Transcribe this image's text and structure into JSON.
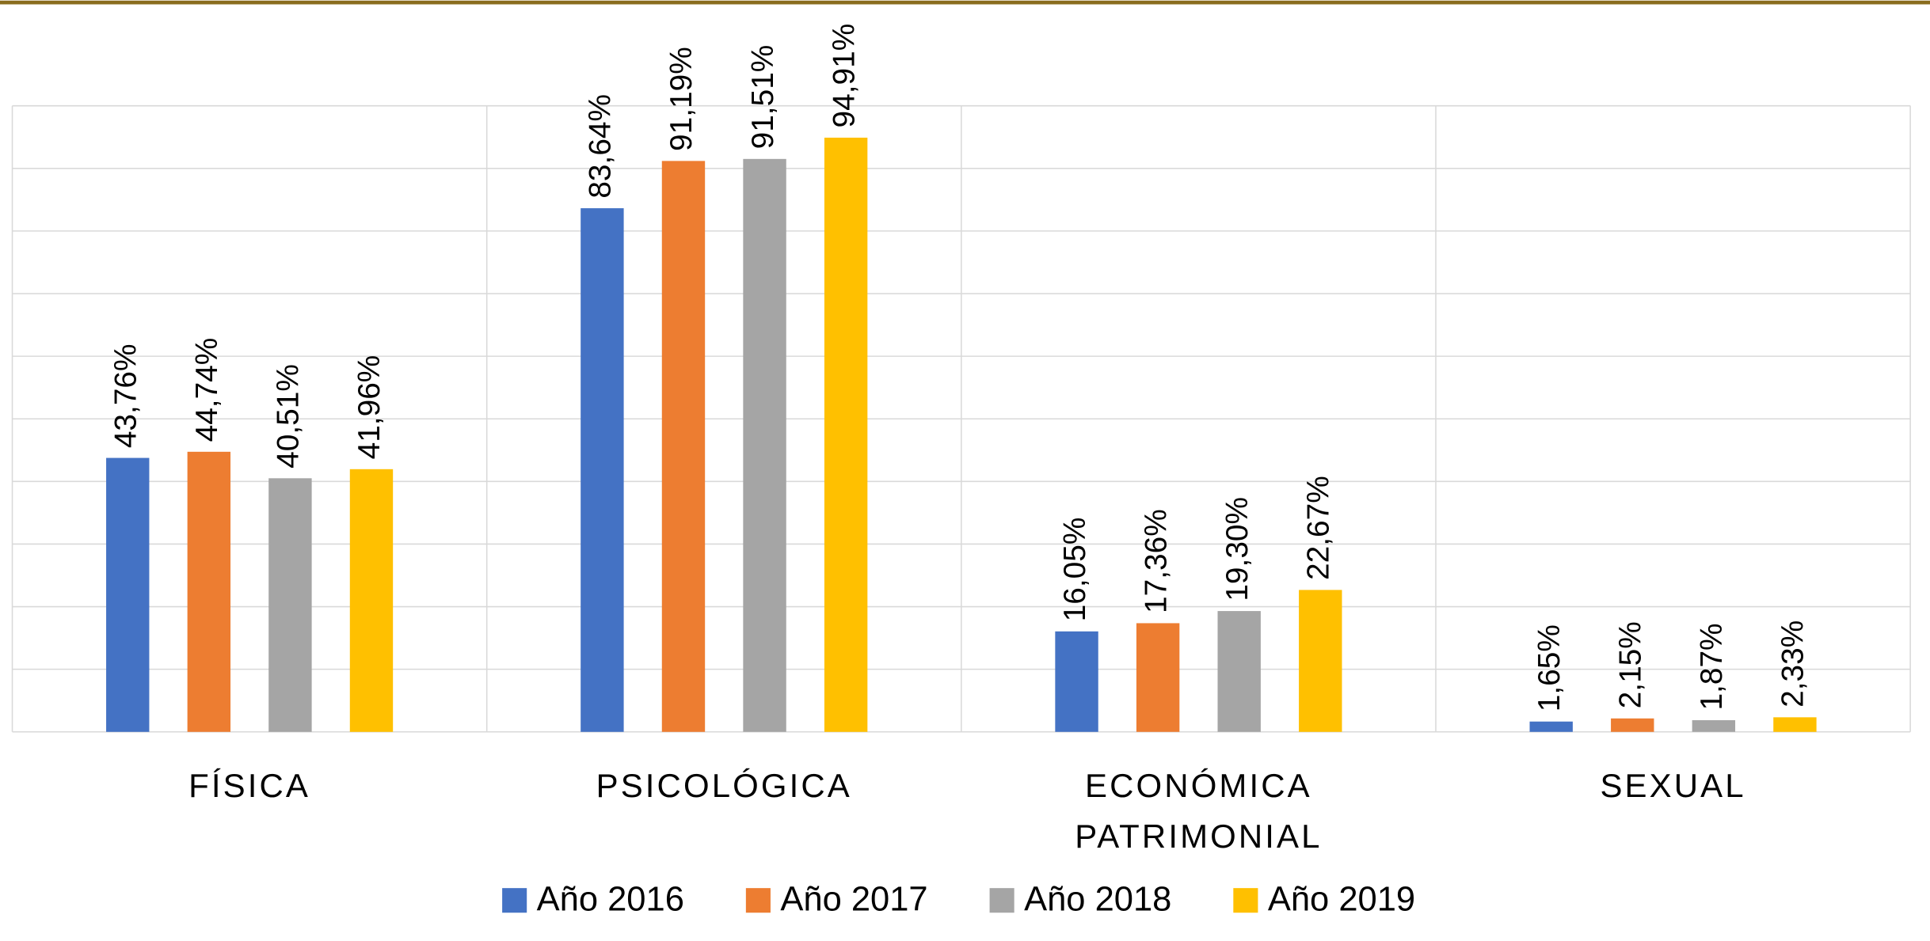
{
  "chart_data": {
    "type": "bar",
    "categories": [
      "FÍSICA",
      "PSICOLÓGICA",
      "ECONÓMICA PATRIMONIAL",
      "SEXUAL"
    ],
    "series": [
      {
        "name": "Año 2016",
        "color": "#4472c4",
        "values": [
          43.76,
          83.64,
          16.05,
          1.65
        ],
        "value_labels": [
          "43,76%",
          "83,64%",
          "16,05%",
          "1,65%"
        ]
      },
      {
        "name": "Año 2017",
        "color": "#ed7d31",
        "values": [
          44.74,
          91.19,
          17.36,
          2.15
        ],
        "value_labels": [
          "44,74%",
          "91,19%",
          "17,36%",
          "2,15%"
        ]
      },
      {
        "name": "Año 2018",
        "color": "#a5a5a5",
        "values": [
          40.51,
          91.51,
          19.3,
          1.87
        ],
        "value_labels": [
          "40,51%",
          "91,51%",
          "19,30%",
          "1,87%"
        ]
      },
      {
        "name": "Año 2019",
        "color": "#ffc000",
        "values": [
          41.96,
          94.91,
          22.67,
          2.33
        ],
        "value_labels": [
          "41,96%",
          "94,91%",
          "22,67%",
          "2,33%"
        ]
      }
    ],
    "ylim": [
      0,
      100
    ],
    "yticks": [
      0,
      10,
      20,
      30,
      40,
      50,
      60,
      70,
      80,
      90,
      100
    ],
    "grid": true,
    "legend": "bottom"
  }
}
